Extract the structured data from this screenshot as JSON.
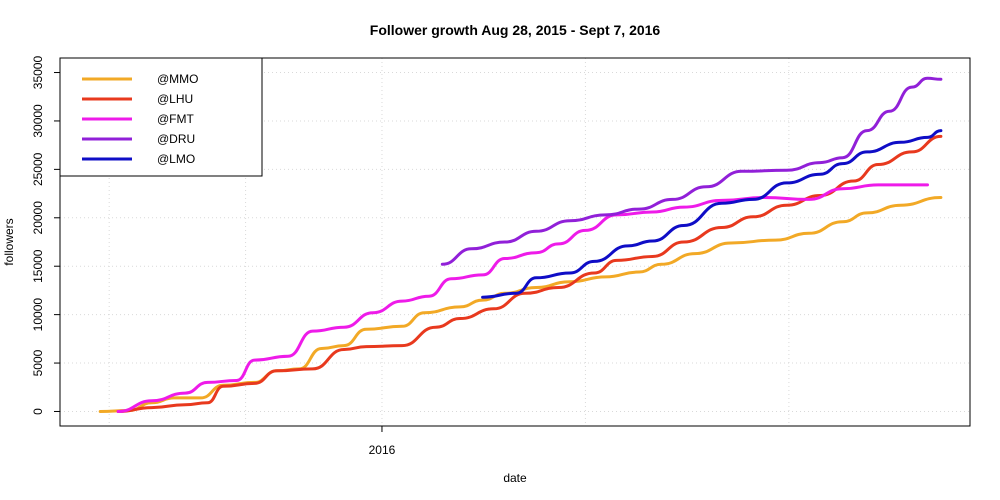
{
  "chart_data": {
    "type": "line",
    "title": "Follower growth Aug 28, 2015 - Sept 7, 2016",
    "xlabel": "date",
    "ylabel": "followers",
    "x_ticks": [
      {
        "label": "2016",
        "value": "2016-01-01"
      }
    ],
    "x_range": [
      "2015-08-28",
      "2016-09-07"
    ],
    "y_ticks": [
      0,
      5000,
      10000,
      15000,
      20000,
      25000,
      30000,
      35000
    ],
    "ylim": [
      0,
      35000
    ],
    "grid": true,
    "legend_position": "top-left",
    "series": [
      {
        "name": "@MMO",
        "color": "#f2a926",
        "points": [
          [
            "2015-08-28",
            0
          ],
          [
            "2015-09-10",
            100
          ],
          [
            "2015-09-20",
            900
          ],
          [
            "2015-09-30",
            1400
          ],
          [
            "2015-10-12",
            1400
          ],
          [
            "2015-10-22",
            2700
          ],
          [
            "2015-11-05",
            3000
          ],
          [
            "2015-11-15",
            4200
          ],
          [
            "2015-11-25",
            4400
          ],
          [
            "2015-12-05",
            6500
          ],
          [
            "2015-12-15",
            6800
          ],
          [
            "2015-12-25",
            8500
          ],
          [
            "2016-01-10",
            8800
          ],
          [
            "2016-01-20",
            10200
          ],
          [
            "2016-02-05",
            10800
          ],
          [
            "2016-02-15",
            11500
          ],
          [
            "2016-02-25",
            12200
          ],
          [
            "2016-03-10",
            12800
          ],
          [
            "2016-03-25",
            13400
          ],
          [
            "2016-04-10",
            13900
          ],
          [
            "2016-04-25",
            14400
          ],
          [
            "2016-05-05",
            15200
          ],
          [
            "2016-05-20",
            16300
          ],
          [
            "2016-06-05",
            17400
          ],
          [
            "2016-06-25",
            17700
          ],
          [
            "2016-07-10",
            18400
          ],
          [
            "2016-07-25",
            19600
          ],
          [
            "2016-08-05",
            20500
          ],
          [
            "2016-08-20",
            21300
          ],
          [
            "2016-09-07",
            22100
          ]
        ]
      },
      {
        "name": "@LHU",
        "color": "#e8391e",
        "points": [
          [
            "2015-09-05",
            0
          ],
          [
            "2015-09-20",
            400
          ],
          [
            "2015-10-05",
            700
          ],
          [
            "2015-10-15",
            900
          ],
          [
            "2015-10-22",
            2600
          ],
          [
            "2015-11-05",
            2900
          ],
          [
            "2015-11-15",
            4200
          ],
          [
            "2015-12-01",
            4400
          ],
          [
            "2015-12-15",
            6400
          ],
          [
            "2015-12-25",
            6700
          ],
          [
            "2016-01-10",
            6800
          ],
          [
            "2016-01-25",
            8700
          ],
          [
            "2016-02-05",
            9600
          ],
          [
            "2016-02-20",
            10600
          ],
          [
            "2016-03-05",
            12200
          ],
          [
            "2016-03-20",
            12800
          ],
          [
            "2016-04-05",
            14300
          ],
          [
            "2016-04-15",
            15600
          ],
          [
            "2016-05-01",
            16000
          ],
          [
            "2016-05-15",
            17500
          ],
          [
            "2016-06-01",
            19000
          ],
          [
            "2016-06-15",
            20100
          ],
          [
            "2016-06-30",
            21300
          ],
          [
            "2016-07-15",
            22300
          ],
          [
            "2016-07-30",
            23800
          ],
          [
            "2016-08-10",
            25500
          ],
          [
            "2016-08-25",
            26800
          ],
          [
            "2016-09-07",
            28400
          ]
        ]
      },
      {
        "name": "@FMT",
        "color": "#ee1be9",
        "points": [
          [
            "2015-09-05",
            0
          ],
          [
            "2015-09-20",
            1100
          ],
          [
            "2015-10-05",
            1900
          ],
          [
            "2015-10-15",
            3000
          ],
          [
            "2015-10-28",
            3200
          ],
          [
            "2015-11-05",
            5300
          ],
          [
            "2015-11-20",
            5700
          ],
          [
            "2015-12-01",
            8300
          ],
          [
            "2015-12-15",
            8700
          ],
          [
            "2015-12-28",
            10200
          ],
          [
            "2016-01-10",
            11400
          ],
          [
            "2016-01-22",
            11900
          ],
          [
            "2016-02-01",
            13700
          ],
          [
            "2016-02-15",
            14100
          ],
          [
            "2016-02-25",
            15800
          ],
          [
            "2016-03-10",
            16400
          ],
          [
            "2016-03-20",
            17300
          ],
          [
            "2016-04-01",
            18700
          ],
          [
            "2016-04-15",
            20300
          ],
          [
            "2016-05-01",
            20600
          ],
          [
            "2016-05-15",
            21100
          ],
          [
            "2016-06-01",
            21800
          ],
          [
            "2016-06-20",
            22100
          ],
          [
            "2016-07-10",
            21900
          ],
          [
            "2016-07-25",
            23000
          ],
          [
            "2016-08-10",
            23400
          ],
          [
            "2016-09-01",
            23400
          ]
        ]
      },
      {
        "name": "@DRU",
        "color": "#9120d8",
        "points": [
          [
            "2016-01-28",
            15200
          ],
          [
            "2016-02-10",
            16800
          ],
          [
            "2016-02-25",
            17500
          ],
          [
            "2016-03-10",
            18600
          ],
          [
            "2016-03-25",
            19700
          ],
          [
            "2016-04-10",
            20300
          ],
          [
            "2016-04-25",
            20900
          ],
          [
            "2016-05-10",
            21900
          ],
          [
            "2016-05-25",
            23200
          ],
          [
            "2016-06-10",
            24800
          ],
          [
            "2016-06-30",
            24900
          ],
          [
            "2016-07-15",
            25700
          ],
          [
            "2016-07-25",
            26200
          ],
          [
            "2016-08-05",
            29000
          ],
          [
            "2016-08-15",
            31000
          ],
          [
            "2016-08-25",
            33500
          ],
          [
            "2016-09-01",
            34400
          ],
          [
            "2016-09-07",
            34300
          ]
        ]
      },
      {
        "name": "@LMO",
        "color": "#0f0dc6",
        "points": [
          [
            "2016-02-15",
            11800
          ],
          [
            "2016-03-01",
            12200
          ],
          [
            "2016-03-10",
            13800
          ],
          [
            "2016-03-25",
            14300
          ],
          [
            "2016-04-05",
            15500
          ],
          [
            "2016-04-20",
            17100
          ],
          [
            "2016-05-01",
            17600
          ],
          [
            "2016-05-15",
            19200
          ],
          [
            "2016-06-01",
            21500
          ],
          [
            "2016-06-15",
            21900
          ],
          [
            "2016-06-30",
            23600
          ],
          [
            "2016-07-15",
            24500
          ],
          [
            "2016-07-25",
            25600
          ],
          [
            "2016-08-05",
            26800
          ],
          [
            "2016-08-20",
            27800
          ],
          [
            "2016-09-01",
            28300
          ],
          [
            "2016-09-07",
            29000
          ]
        ]
      }
    ]
  }
}
